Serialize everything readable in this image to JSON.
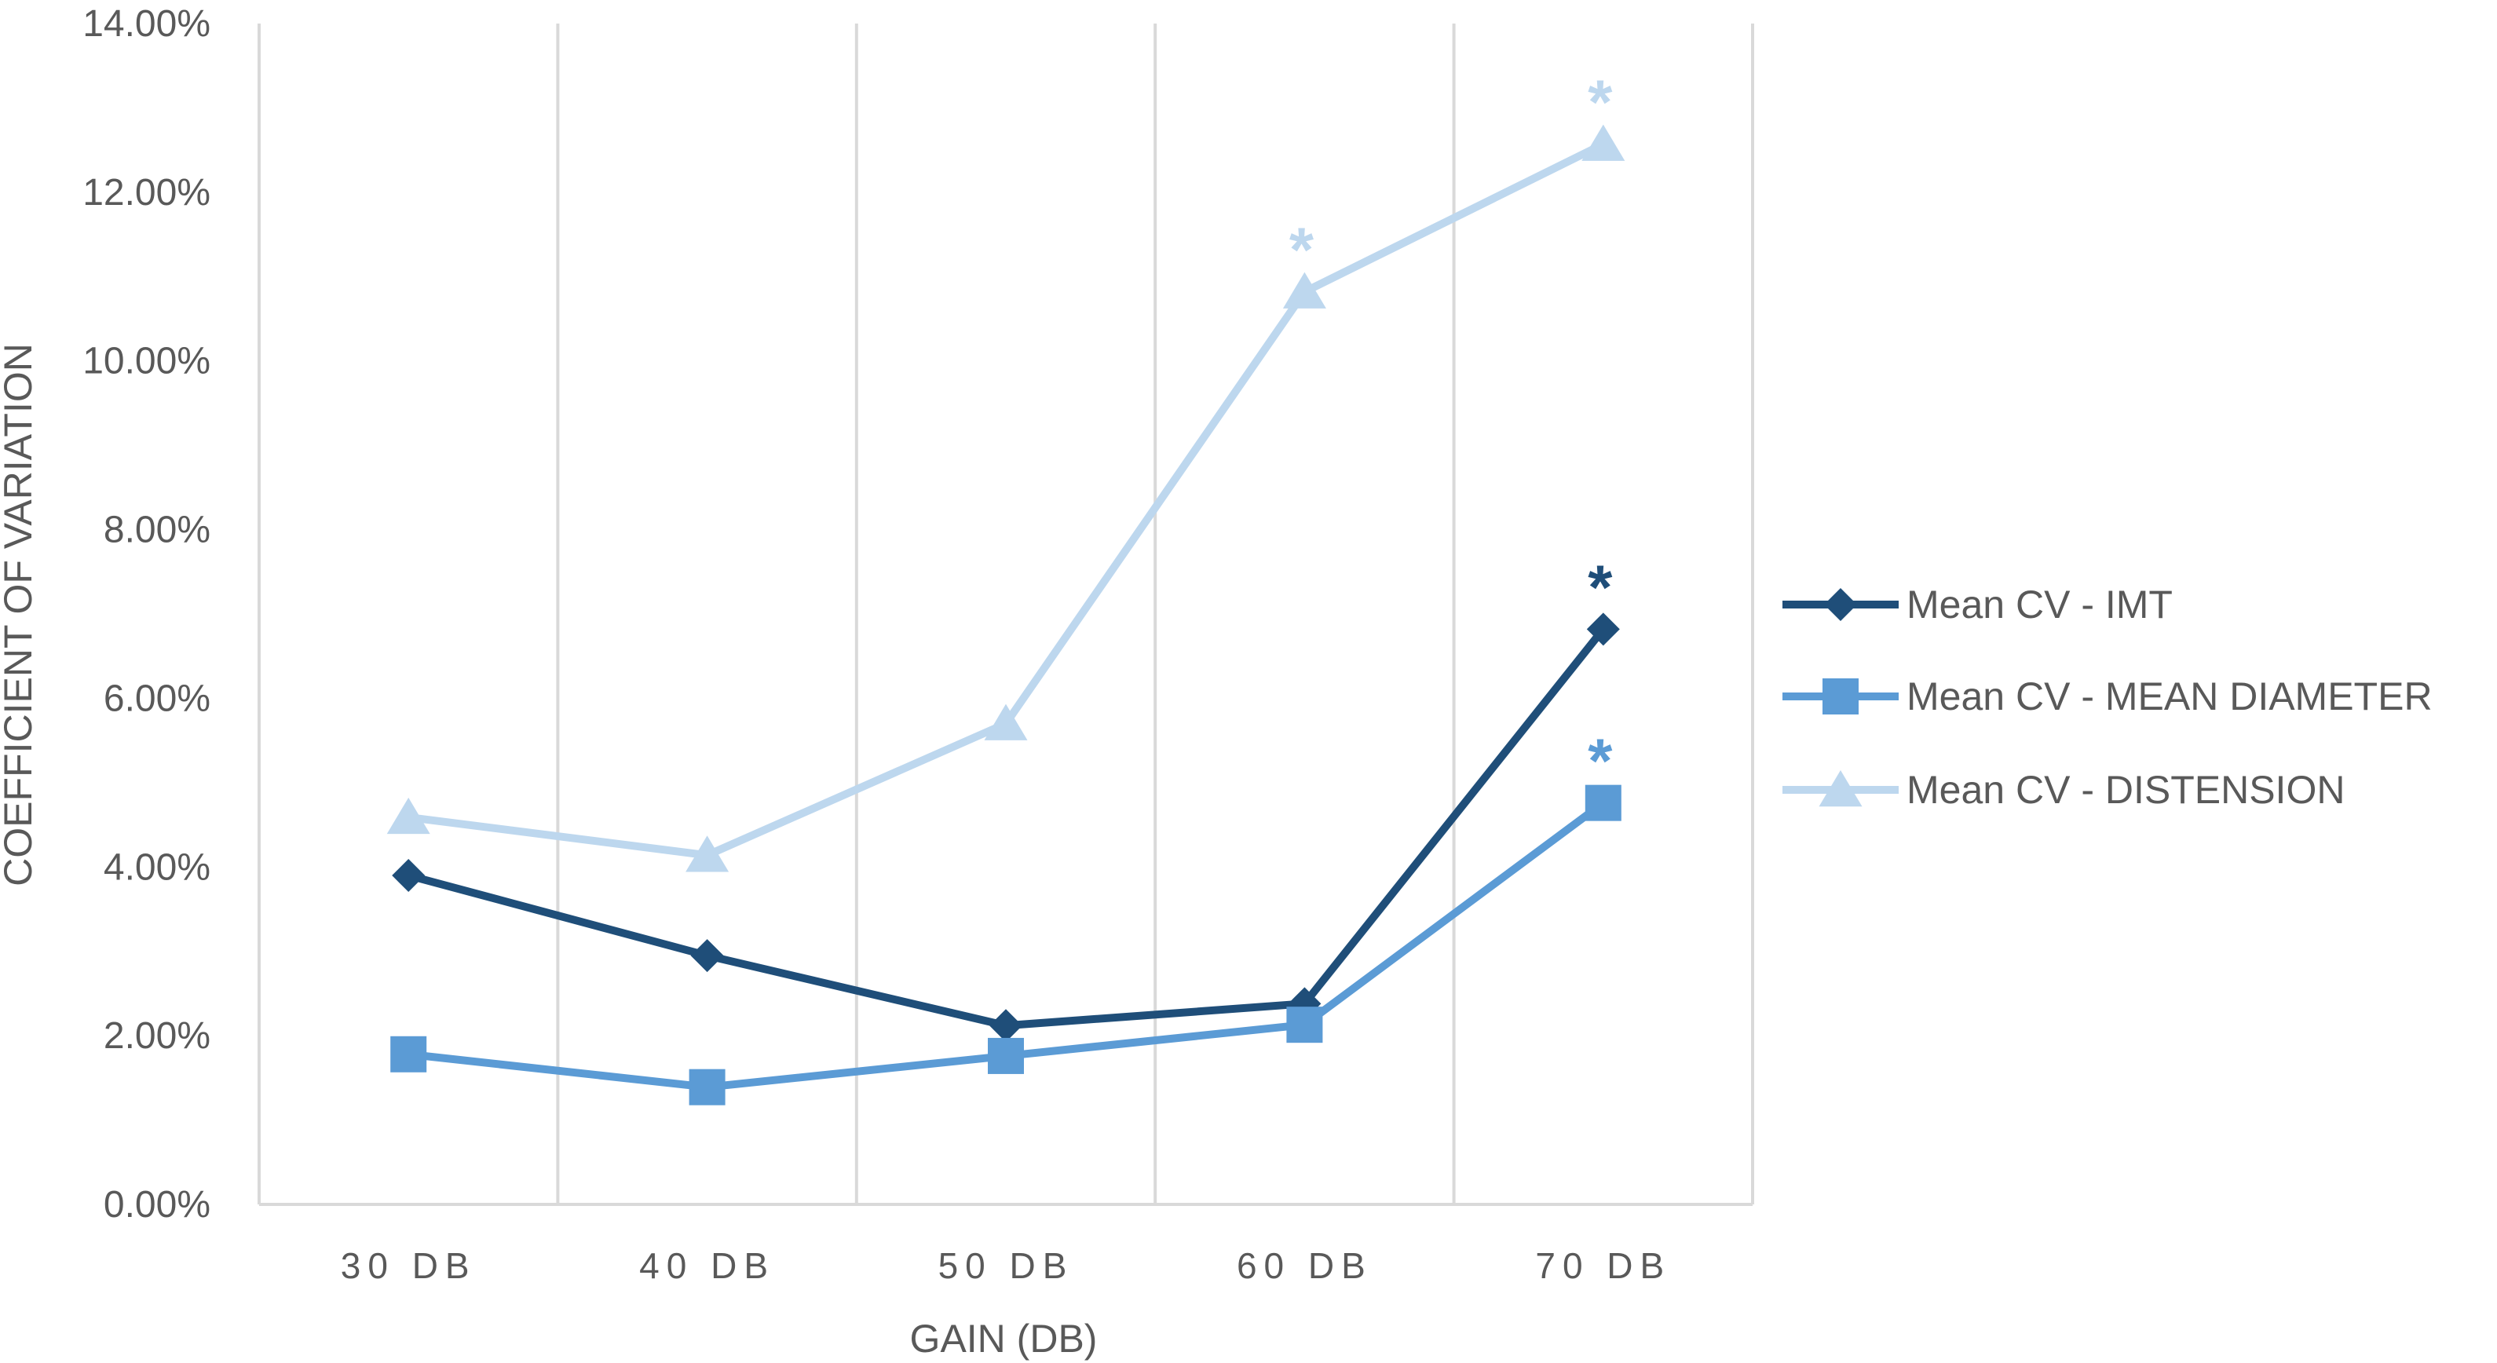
{
  "chart_data": {
    "type": "line",
    "title": "",
    "xlabel": "GAIN (DB)",
    "ylabel": "COEFFICIENT OF VARIATION",
    "categories": [
      "30 DB",
      "40 DB",
      "50 DB",
      "60 DB",
      "70 DB"
    ],
    "ylim": [
      0,
      0.14
    ],
    "yticks": [
      "0.00%",
      "2.00%",
      "4.00%",
      "6.00%",
      "8.00%",
      "10.00%",
      "12.00%",
      "14.00%"
    ],
    "grid": "vertical",
    "legend_position": "right",
    "series": [
      {
        "name": "Mean CV - IMT",
        "values": [
          0.039,
          0.0295,
          0.0212,
          0.0238,
          0.0682
        ],
        "color": "#1F4E79",
        "marker": "diamond",
        "annotations": [
          "",
          "",
          "",
          "",
          "*"
        ]
      },
      {
        "name": "Mean CV - MEAN DIAMETER",
        "values": [
          0.0178,
          0.0139,
          0.0176,
          0.0213,
          0.0476
        ],
        "color": "#5B9BD5",
        "marker": "square",
        "annotations": [
          "",
          "",
          "",
          "",
          "*"
        ]
      },
      {
        "name": "Mean CV - DISTENSION",
        "values": [
          0.0459,
          0.0414,
          0.057,
          0.1082,
          0.1257
        ],
        "color": "#BDD7EE",
        "marker": "triangle",
        "annotations": [
          "",
          "",
          "",
          "*",
          "*"
        ]
      }
    ]
  }
}
